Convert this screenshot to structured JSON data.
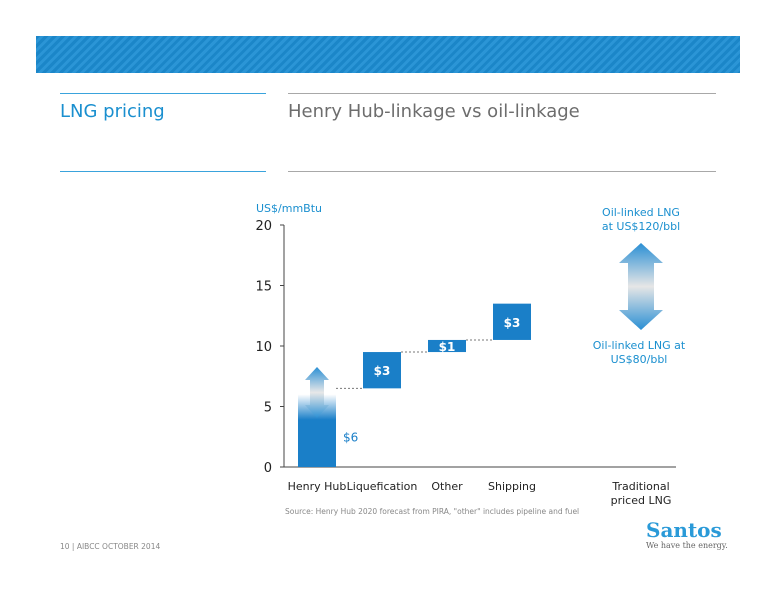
{
  "header": {
    "left_title": "LNG pricing",
    "right_title": "Henry Hub-linkage vs oil-linkage",
    "accent": "#1a8fcf"
  },
  "chart_data": {
    "type": "bar",
    "subtype": "waterfall",
    "ylabel": "US$/mmBtu",
    "ylim": [
      0,
      20
    ],
    "yticks": [
      0,
      5,
      10,
      15,
      20
    ],
    "categories": [
      "Henry Hub",
      "Liquefication",
      "Other",
      "Shipping",
      "Traditional priced LNG"
    ],
    "bars": [
      {
        "category": "Henry Hub",
        "base": 0,
        "value": 6,
        "label": "$6"
      },
      {
        "category": "Liquefication",
        "base": 6.5,
        "value": 3,
        "label": "$3"
      },
      {
        "category": "Other",
        "base": 9.5,
        "value": 1,
        "label": "$1"
      },
      {
        "category": "Shipping",
        "base": 10.5,
        "value": 3,
        "label": "$3"
      }
    ],
    "range_arrow": {
      "category": "Traditional priced LNG",
      "low": 11.5,
      "high": 18.5,
      "top_label": "Oil-linked LNG at US$120/bbl",
      "bottom_label": "Oil-linked LNG at US$80/bbl"
    },
    "bar_color": "#1a7fc8"
  },
  "source": "Source: Henry Hub 2020 forecast from PIRA, \"other\" includes pipeline and fuel",
  "footer": "10 | AIBCC OCTOBER 2014",
  "logo": {
    "name": "Santos",
    "tagline": "We have the energy."
  }
}
